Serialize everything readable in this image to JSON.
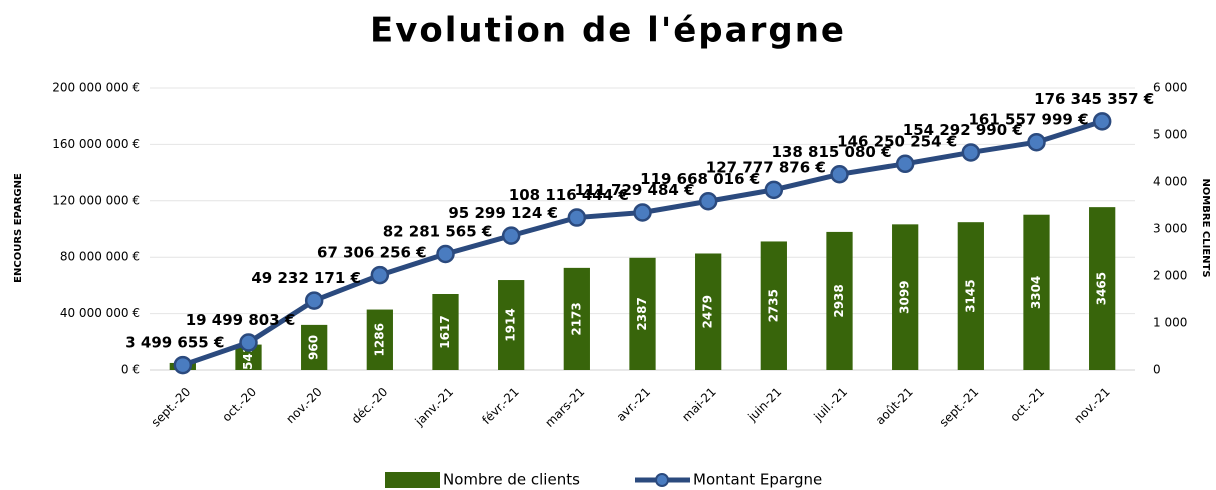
{
  "chart_data": {
    "type": "bar_line",
    "title": "Evolution de l'épargne",
    "y_label": "ENCOURS EPARGNE",
    "y2_label": "NOMBRE CLIENTS",
    "categories": [
      "sept.-20",
      "oct.-20",
      "nov.-20",
      "déc.-20",
      "janv.-21",
      "févr.-21",
      "mars-21",
      "avr.-21",
      "mai-21",
      "juin-21",
      "juil.-21",
      "août-21",
      "sept.-21",
      "oct.-21",
      "nov.-21"
    ],
    "series": [
      {
        "name": "Nombre de clients",
        "type": "bar",
        "axis": "y2",
        "color": "#38650b",
        "values": [
          150,
          541,
          960,
          1286,
          1617,
          1914,
          2173,
          2387,
          2479,
          2735,
          2938,
          3099,
          3145,
          3304,
          3465
        ]
      },
      {
        "name": "Montant Epargne",
        "type": "line",
        "axis": "y",
        "color": "#2b4a7e",
        "values": [
          3499655,
          19499803,
          49232171,
          67306256,
          82281565,
          95299124,
          108116444,
          111729484,
          119668016,
          127777876,
          138815080,
          146250254,
          154292990,
          161557999,
          176345357
        ],
        "value_labels": [
          "3 499 655 €",
          "19 499 803 €",
          "49 232 171 €",
          "67 306 256 €",
          "82 281 565 €",
          "95 299 124 €",
          "108 116 444 €",
          "111 729 484 €",
          "119 668 016 €",
          "127 777 876 €",
          "138 815 080 €",
          "146 250 254 €",
          "154 292 990 €",
          "161 557 999 €",
          "176 345 357 €"
        ]
      }
    ],
    "ylim": [
      0,
      200000000
    ],
    "yticks": [
      {
        "value": 0,
        "label": "0 €"
      },
      {
        "value": 40000000,
        "label": "40 000 000 €"
      },
      {
        "value": 80000000,
        "label": "80 000 000 €"
      },
      {
        "value": 120000000,
        "label": "120 000 000 €"
      },
      {
        "value": 160000000,
        "label": "160 000 000 €"
      },
      {
        "value": 200000000,
        "label": "200 000 000 €"
      }
    ],
    "y2lim": [
      0,
      6000
    ],
    "y2ticks": [
      0,
      {
        "value": 1000,
        "label": "1 000"
      },
      {
        "value": 2000,
        "label": "2 000"
      },
      {
        "value": 3000,
        "label": "3 000"
      },
      {
        "value": 4000,
        "label": "4 000"
      },
      {
        "value": 5000,
        "label": "5 000"
      },
      {
        "value": 6000,
        "label": "6 000"
      }
    ],
    "grid": true,
    "legend": "bottom"
  }
}
